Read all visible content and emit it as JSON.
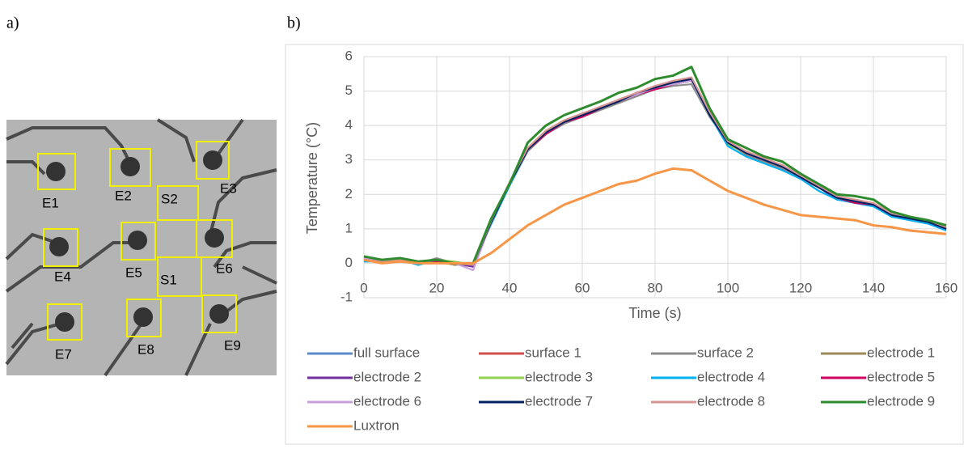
{
  "panel_labels": [
    "a)",
    "b)"
  ],
  "image_labels": [
    "E1",
    "E2",
    "E3",
    "S2",
    "E4",
    "E5",
    "E6",
    "S1",
    "E7",
    "E8",
    "E9"
  ],
  "chart_data": {
    "type": "line",
    "xlabel": "Time (s)",
    "ylabel": "Temperature (°C)",
    "xlim": [
      0,
      160
    ],
    "xticks": [
      0,
      20,
      40,
      60,
      80,
      100,
      120,
      140,
      160
    ],
    "ylim": [
      -1,
      6
    ],
    "yticks": [
      -1,
      0,
      1,
      2,
      3,
      4,
      5,
      6
    ],
    "grid": true,
    "legend": "bottom",
    "x": [
      0,
      5,
      10,
      15,
      20,
      25,
      30,
      35,
      40,
      45,
      50,
      55,
      60,
      65,
      70,
      75,
      80,
      85,
      90,
      95,
      100,
      105,
      110,
      115,
      120,
      125,
      130,
      135,
      140,
      145,
      150,
      155,
      160
    ],
    "series": [
      {
        "name": "full surface",
        "color": "#5b8ac9",
        "values": [
          0.1,
          0.05,
          0.1,
          0.0,
          0.1,
          0.0,
          -0.05,
          1.2,
          2.3,
          3.3,
          3.8,
          4.1,
          4.3,
          4.5,
          4.7,
          4.9,
          5.1,
          5.2,
          5.3,
          4.3,
          3.5,
          3.2,
          3.0,
          2.8,
          2.5,
          2.2,
          1.9,
          1.8,
          1.7,
          1.4,
          1.3,
          1.2,
          1.0
        ]
      },
      {
        "name": "surface 1",
        "color": "#d0504d",
        "values": [
          0.15,
          0.0,
          0.1,
          0.05,
          0.1,
          0.0,
          -0.1,
          1.25,
          2.3,
          3.35,
          3.8,
          4.15,
          4.3,
          4.55,
          4.7,
          4.95,
          5.1,
          5.25,
          5.35,
          4.35,
          3.45,
          3.2,
          3.05,
          2.8,
          2.45,
          2.2,
          1.95,
          1.8,
          1.7,
          1.45,
          1.3,
          1.2,
          1.05
        ]
      },
      {
        "name": "surface 2",
        "color": "#8c8c8c",
        "values": [
          0.05,
          0.1,
          0.05,
          0.0,
          0.15,
          0.0,
          -0.05,
          1.15,
          2.25,
          3.25,
          3.75,
          4.05,
          4.25,
          4.45,
          4.65,
          4.85,
          5.05,
          5.15,
          5.2,
          4.25,
          3.5,
          3.15,
          2.95,
          2.75,
          2.5,
          2.2,
          1.9,
          1.85,
          1.65,
          1.4,
          1.25,
          1.15,
          1.0
        ]
      },
      {
        "name": "electrode 1",
        "color": "#9c8a5a",
        "values": [
          0.1,
          0.05,
          0.15,
          0.0,
          0.05,
          -0.05,
          0.0,
          1.2,
          2.35,
          3.3,
          3.85,
          4.1,
          4.35,
          4.5,
          4.75,
          4.9,
          5.15,
          5.2,
          5.3,
          4.3,
          3.55,
          3.2,
          3.0,
          2.85,
          2.5,
          2.25,
          1.9,
          1.8,
          1.75,
          1.4,
          1.35,
          1.2,
          1.0
        ]
      },
      {
        "name": "electrode 2",
        "color": "#7030a0",
        "values": [
          0.2,
          0.0,
          0.1,
          0.05,
          0.1,
          0.0,
          -0.1,
          1.2,
          2.3,
          3.3,
          3.8,
          4.1,
          4.3,
          4.5,
          4.7,
          4.9,
          5.1,
          5.2,
          5.35,
          4.4,
          3.5,
          3.25,
          3.0,
          2.8,
          2.55,
          2.2,
          1.85,
          1.8,
          1.7,
          1.4,
          1.3,
          1.25,
          1.0
        ]
      },
      {
        "name": "electrode 3",
        "color": "#92d050",
        "values": [
          0.1,
          0.1,
          0.05,
          0.0,
          0.1,
          0.05,
          -0.05,
          1.25,
          2.3,
          3.35,
          3.85,
          4.15,
          4.35,
          4.5,
          4.75,
          4.95,
          5.1,
          5.25,
          5.3,
          4.3,
          3.45,
          3.2,
          3.0,
          2.8,
          2.5,
          2.2,
          1.9,
          1.8,
          1.7,
          1.4,
          1.3,
          1.2,
          1.05
        ]
      },
      {
        "name": "electrode 4",
        "color": "#00b0f0",
        "values": [
          0.05,
          0.05,
          0.1,
          -0.05,
          0.1,
          0.0,
          -0.05,
          1.15,
          2.25,
          3.3,
          3.8,
          4.1,
          4.3,
          4.5,
          4.7,
          4.9,
          5.1,
          5.2,
          5.3,
          4.3,
          3.4,
          3.1,
          2.9,
          2.7,
          2.45,
          2.1,
          1.85,
          1.75,
          1.65,
          1.35,
          1.25,
          1.15,
          0.95
        ]
      },
      {
        "name": "electrode 5",
        "color": "#d0005f",
        "values": [
          0.1,
          0.0,
          0.1,
          0.0,
          0.05,
          0.0,
          -0.05,
          1.2,
          2.3,
          3.3,
          3.75,
          4.1,
          4.25,
          4.5,
          4.7,
          4.9,
          5.05,
          5.2,
          5.3,
          4.35,
          3.5,
          3.2,
          3.0,
          2.8,
          2.5,
          2.2,
          1.9,
          1.75,
          1.7,
          1.4,
          1.3,
          1.2,
          1.0
        ]
      },
      {
        "name": "electrode 6",
        "color": "#c9a0dc",
        "values": [
          0.15,
          0.05,
          0.1,
          0.0,
          0.1,
          0.0,
          -0.2,
          1.2,
          2.3,
          3.3,
          3.8,
          4.1,
          4.3,
          4.55,
          4.7,
          4.9,
          5.1,
          5.2,
          5.3,
          4.3,
          3.5,
          3.2,
          3.0,
          2.8,
          2.5,
          2.2,
          1.9,
          1.8,
          1.7,
          1.45,
          1.3,
          1.2,
          1.0
        ]
      },
      {
        "name": "electrode 7",
        "color": "#002060",
        "values": [
          0.1,
          0.05,
          0.1,
          0.0,
          0.1,
          0.0,
          -0.05,
          1.2,
          2.3,
          3.3,
          3.8,
          4.1,
          4.3,
          4.5,
          4.7,
          4.95,
          5.1,
          5.25,
          5.35,
          4.3,
          3.5,
          3.2,
          3.0,
          2.8,
          2.5,
          2.2,
          1.9,
          1.8,
          1.7,
          1.4,
          1.3,
          1.2,
          1.0
        ]
      },
      {
        "name": "electrode 8",
        "color": "#d99594",
        "values": [
          0.1,
          0.05,
          0.1,
          0.0,
          0.1,
          0.0,
          -0.05,
          1.25,
          2.35,
          3.35,
          3.85,
          4.15,
          4.35,
          4.55,
          4.75,
          4.95,
          5.15,
          5.3,
          5.4,
          4.4,
          3.55,
          3.25,
          3.05,
          2.85,
          2.55,
          2.25,
          1.95,
          1.85,
          1.75,
          1.45,
          1.35,
          1.25,
          1.05
        ]
      },
      {
        "name": "electrode 9",
        "color": "#2e8b2e",
        "values": [
          0.2,
          0.1,
          0.15,
          0.05,
          0.1,
          0.0,
          0.0,
          1.3,
          2.3,
          3.5,
          4.0,
          4.3,
          4.5,
          4.7,
          4.95,
          5.1,
          5.35,
          5.45,
          5.7,
          4.5,
          3.6,
          3.35,
          3.1,
          2.95,
          2.6,
          2.3,
          2.0,
          1.95,
          1.85,
          1.5,
          1.35,
          1.25,
          1.1
        ]
      },
      {
        "name": "Luxtron",
        "color": "#f79646",
        "values": [
          0.1,
          0.0,
          0.05,
          0.0,
          0.0,
          0.0,
          0.0,
          0.3,
          0.7,
          1.1,
          1.4,
          1.7,
          1.9,
          2.1,
          2.3,
          2.4,
          2.6,
          2.75,
          2.7,
          2.4,
          2.1,
          1.9,
          1.7,
          1.55,
          1.4,
          1.35,
          1.3,
          1.25,
          1.1,
          1.05,
          0.95,
          0.9,
          0.85
        ]
      }
    ]
  }
}
